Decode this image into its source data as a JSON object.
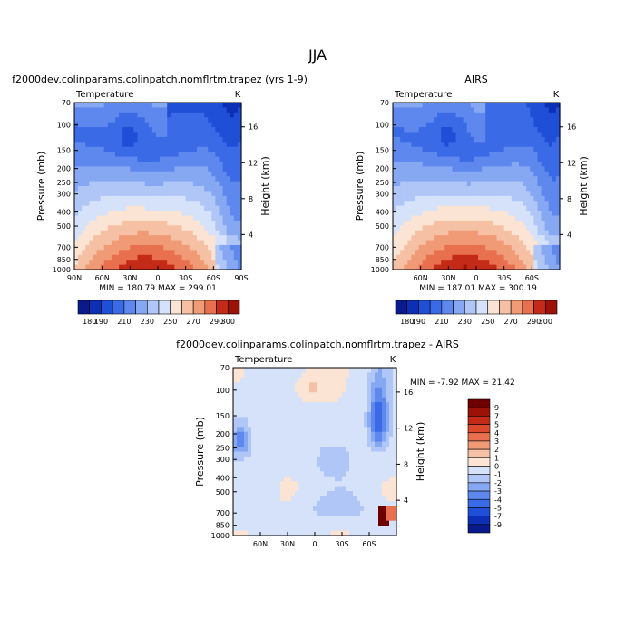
{
  "figure": {
    "title": "JJA",
    "color_palette": [
      "#081a8c",
      "#0d2fb5",
      "#1f4fd6",
      "#3a6ae6",
      "#5e88ee",
      "#86a8f3",
      "#afc6f7",
      "#d5e2fa",
      "#fbe4d4",
      "#f6c0a4",
      "#f09a76",
      "#e8704f",
      "#dc4a2e",
      "#c42a18",
      "#9c1108",
      "#6e0000"
    ]
  },
  "chart_data": [
    {
      "type": "heatmap",
      "title": "f2000dev.colinparams.colinpatch.nomflrtm.trapez (yrs 1-9)",
      "left_label": "Temperature",
      "right_label": "K",
      "xlabel": "",
      "ylabel": "Pressure (mb)",
      "ylabel_right": "Height (km)",
      "x_ticks": [
        "90N",
        "60N",
        "30N",
        "0",
        "30S",
        "60S",
        "90S"
      ],
      "y_ticks": [
        "70",
        "100",
        "150",
        "200",
        "250",
        "300",
        "400",
        "500",
        "700",
        "850",
        "1000"
      ],
      "y_ticks_right": [
        "16",
        "12",
        "8",
        "4"
      ],
      "stats": "MIN = 180.79   MAX = 299.01",
      "colorbar_ticks": [
        "180",
        "190",
        "200",
        "210",
        "220",
        "230",
        "240",
        "250",
        "260",
        "270",
        "280",
        "290",
        "300"
      ],
      "colorbar_labels": [
        "180",
        "190",
        "210",
        "230",
        "250",
        "270",
        "290",
        "300"
      ],
      "x_range": [
        -90,
        90
      ],
      "y_range_mb": [
        70,
        1000
      ]
    },
    {
      "type": "heatmap",
      "title": "AIRS",
      "left_label": "Temperature",
      "right_label": "K",
      "xlabel": "",
      "ylabel": "Pressure (mb)",
      "ylabel_right": "Height (km)",
      "x_ticks": [
        "60N",
        "30N",
        "0",
        "30S",
        "60S"
      ],
      "y_ticks": [
        "70",
        "100",
        "150",
        "200",
        "250",
        "300",
        "400",
        "500",
        "700",
        "850",
        "1000"
      ],
      "y_ticks_right": [
        "16",
        "12",
        "8",
        "4"
      ],
      "stats": "MIN = 187.01   MAX = 300.19",
      "colorbar_ticks": [
        "180",
        "190",
        "200",
        "210",
        "220",
        "230",
        "240",
        "250",
        "260",
        "270",
        "280",
        "290",
        "300"
      ],
      "colorbar_labels": [
        "180",
        "190",
        "210",
        "230",
        "250",
        "270",
        "290",
        "300"
      ],
      "x_range": [
        -90,
        90
      ],
      "y_range_mb": [
        70,
        1000
      ]
    },
    {
      "type": "heatmap",
      "title": "f2000dev.colinparams.colinpatch.nomflrtm.trapez - AIRS",
      "left_label": "Temperature",
      "right_label": "K",
      "xlabel": "",
      "ylabel": "Pressure (mb)",
      "ylabel_right": "Height (km)",
      "x_ticks": [
        "60N",
        "30N",
        "0",
        "30S",
        "60S"
      ],
      "y_ticks": [
        "70",
        "100",
        "150",
        "200",
        "250",
        "300",
        "400",
        "500",
        "700",
        "850",
        "1000"
      ],
      "y_ticks_right": [
        "16",
        "12",
        "8",
        "4"
      ],
      "stats": "MIN =  -7.92   MAX =  21.42",
      "colorbar_labels": [
        "9",
        "7",
        "5",
        "4",
        "3",
        "2",
        "1",
        "0",
        "-1",
        "-2",
        "-3",
        "-4",
        "-5",
        "-7",
        "-9"
      ],
      "x_range": [
        -90,
        90
      ],
      "y_range_mb": [
        70,
        1000
      ]
    }
  ]
}
